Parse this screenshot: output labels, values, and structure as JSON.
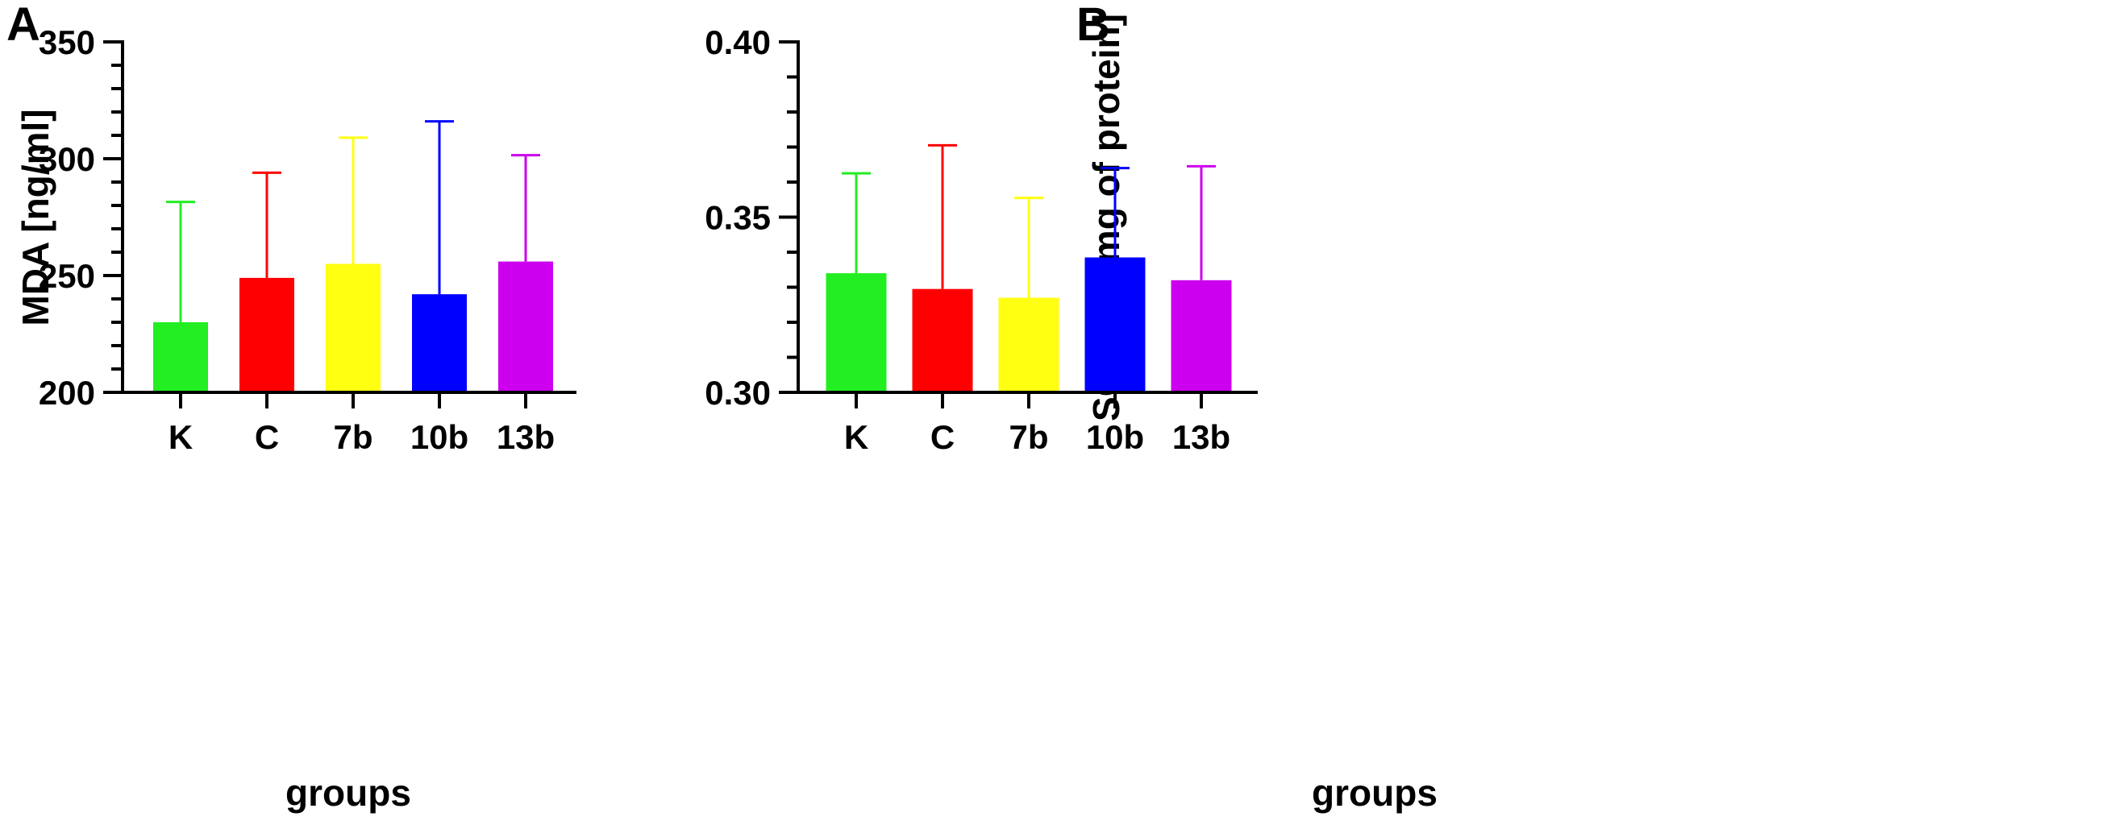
{
  "figure": {
    "panels": [
      {
        "letter": "A",
        "chart_data": {
          "type": "bar",
          "categories": [
            "K",
            "C",
            "7b",
            "10b",
            "13b"
          ],
          "values": [
            230,
            249,
            255,
            242,
            256
          ],
          "error_upper": [
            281.5,
            294,
            309,
            316,
            301.5
          ],
          "colors": [
            "#22ee22",
            "#ff0000",
            "#ffff11",
            "#0000ff",
            "#cc00ee"
          ],
          "ylabel": "MDA [ng/ml]",
          "xlabel": "groups",
          "ylim": [
            200,
            350
          ],
          "ytick_values": [
            200,
            250,
            300,
            350
          ],
          "ytick_labels": [
            "200",
            "250",
            "300",
            "350"
          ],
          "minor_tick_step": 10
        }
      },
      {
        "letter": "B",
        "chart_data": {
          "type": "bar",
          "categories": [
            "K",
            "C",
            "7b",
            "10b",
            "13b"
          ],
          "values": [
            0.334,
            0.3295,
            0.327,
            0.3385,
            0.332
          ],
          "error_upper": [
            0.3625,
            0.3705,
            0.3555,
            0.364,
            0.3645
          ],
          "colors": [
            "#22ee22",
            "#ff0000",
            "#ffff11",
            "#0000ff",
            "#cc00ee"
          ],
          "ylabel": "SOD [ng/mg of protein]",
          "xlabel": "groups",
          "ylim": [
            0.3,
            0.4
          ],
          "ytick_values": [
            0.3,
            0.35,
            0.4
          ],
          "ytick_labels": [
            "0.30",
            "0.35",
            "0.40"
          ],
          "minor_tick_step": 0.01
        }
      }
    ]
  }
}
